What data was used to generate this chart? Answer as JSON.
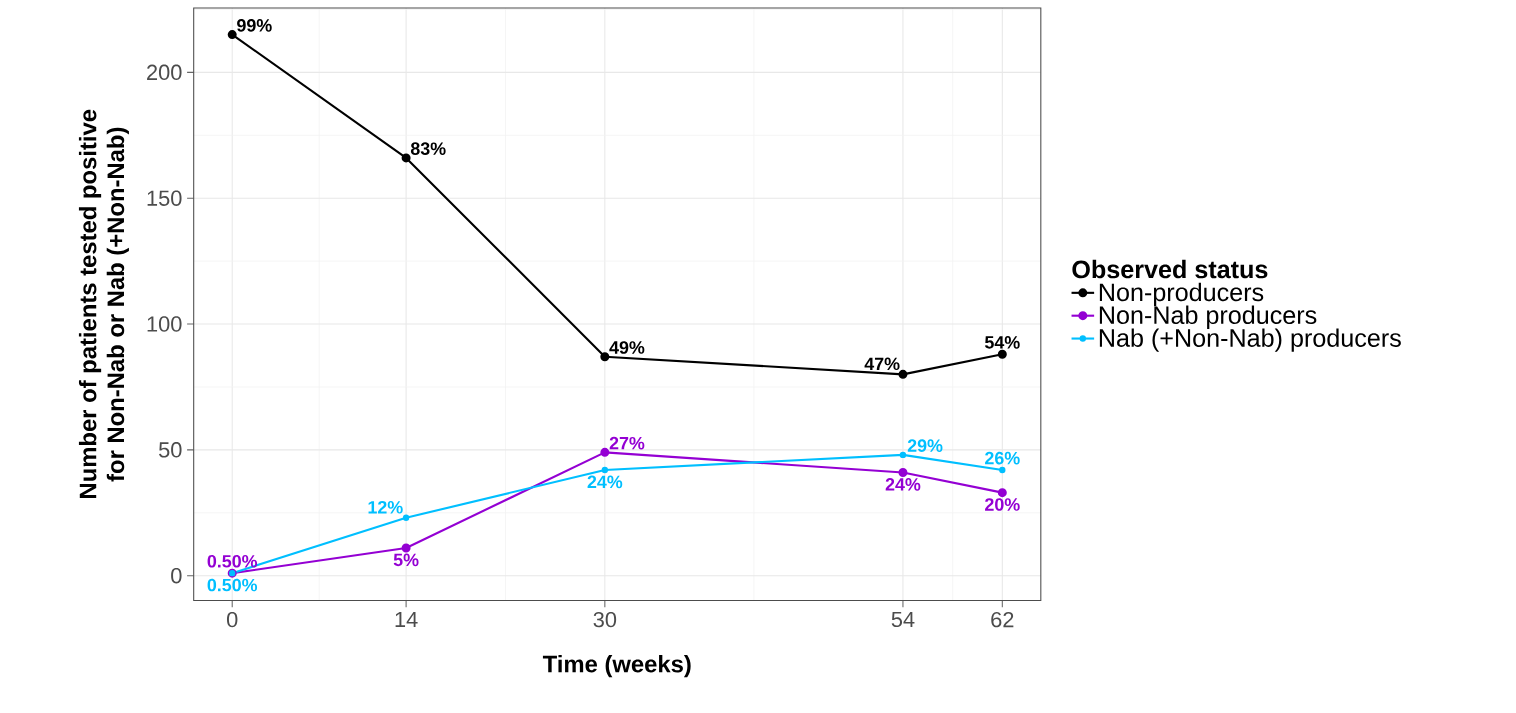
{
  "chart_data": {
    "type": "line",
    "xlabel": "Time (weeks)",
    "ylabel": "Number of patients tested positive\nfor Non-Nab or Nab (+Non-Nab)",
    "legend_title": "Observed status",
    "x": [
      0,
      14,
      30,
      54,
      62
    ],
    "xlim": [
      -3.1,
      65.1
    ],
    "ylim": [
      -9.9,
      225.6
    ],
    "xticks": [
      0,
      14,
      30,
      54,
      62
    ],
    "yticks": [
      0,
      50,
      100,
      150,
      200
    ],
    "grid": true,
    "legend": "right",
    "marker": "circle",
    "line_style": "solid",
    "series": [
      {
        "name": "Non-producers",
        "color": "#000000",
        "values": [
          215,
          166,
          87,
          80,
          88
        ]
      },
      {
        "name": "Non-Nab producers",
        "color": "#9400d3",
        "values": [
          1,
          11,
          49,
          41,
          33
        ]
      },
      {
        "name": "Nab (+Non-Nab) producers",
        "color": "#00bfff",
        "values": [
          1,
          23,
          42,
          48,
          42
        ]
      }
    ],
    "annotations": [
      {
        "text": "99%",
        "x": 0,
        "y": 215
      },
      {
        "text": "83%",
        "x": 14,
        "y": 166
      },
      {
        "text": "49%",
        "x": 30,
        "y": 87
      },
      {
        "text": "47%",
        "x": 54,
        "y": 80
      },
      {
        "text": "54%",
        "x": 62,
        "y": 88
      },
      {
        "text": "0.50%",
        "x": 0,
        "y": 1
      },
      {
        "text": "5%",
        "x": 14,
        "y": 11
      },
      {
        "text": "27%",
        "x": 30,
        "y": 49
      },
      {
        "text": "24%",
        "x": 54,
        "y": 41
      },
      {
        "text": "20%",
        "x": 62,
        "y": 33
      },
      {
        "text": "0.50%",
        "x": 0,
        "y": 1
      },
      {
        "text": "12%",
        "x": 14,
        "y": 23
      },
      {
        "text": "24%",
        "x": 30,
        "y": 42
      },
      {
        "text": "29%",
        "x": 54,
        "y": 48
      },
      {
        "text": "26%",
        "x": 62,
        "y": 42
      }
    ]
  }
}
